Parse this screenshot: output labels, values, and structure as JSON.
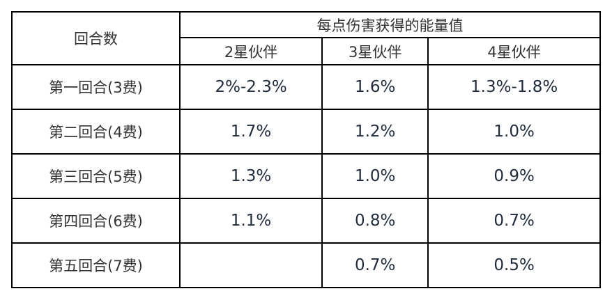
{
  "header": {
    "round_label": "回合数",
    "group_label": "每点伤害获得的能量值",
    "columns": [
      "2星伙伴",
      "3星伙伴",
      "4星伙伴"
    ]
  },
  "rows": [
    {
      "round": "第一回合(3费)",
      "values": [
        "2%-2.3%",
        "1.6%",
        "1.3%-1.8%"
      ]
    },
    {
      "round": "第二回合(4费)",
      "values": [
        "1.7%",
        "1.2%",
        "1.0%"
      ]
    },
    {
      "round": "第三回合(5费)",
      "values": [
        "1.3%",
        "1.0%",
        "0.9%"
      ]
    },
    {
      "round": "第四回合(6费)",
      "values": [
        "1.1%",
        "0.8%",
        "0.7%"
      ]
    },
    {
      "round": "第五回合(7费)",
      "values": [
        "",
        "0.7%",
        "0.5%"
      ]
    }
  ]
}
